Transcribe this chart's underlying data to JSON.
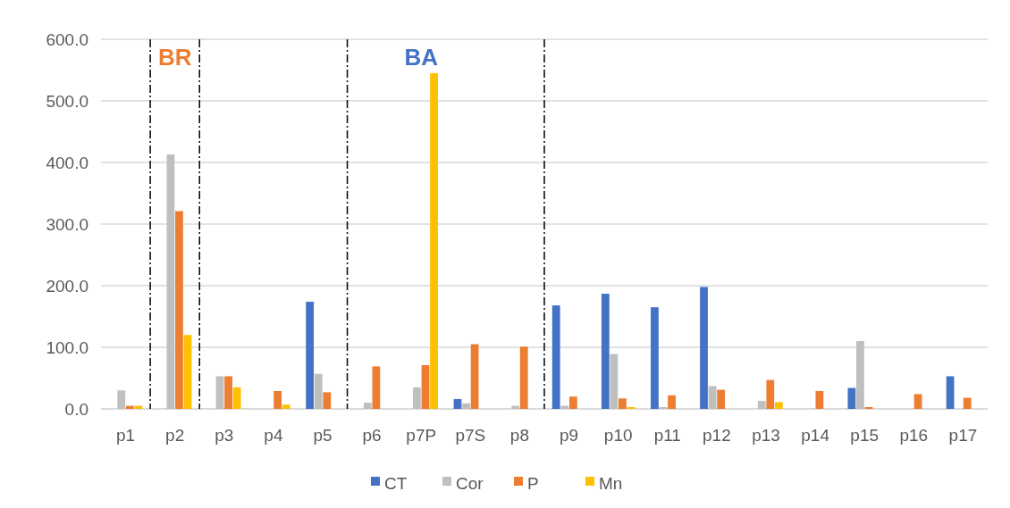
{
  "chart_data": {
    "type": "bar",
    "categories": [
      "p1",
      "p2",
      "p3",
      "p4",
      "p5",
      "p6",
      "p7P",
      "p7S",
      "p8",
      "p9",
      "p10",
      "p11",
      "p12",
      "p13",
      "p14",
      "p15",
      "p16",
      "p17"
    ],
    "series": [
      {
        "name": "CT",
        "color": "#4472c4",
        "values": [
          null,
          null,
          null,
          null,
          174,
          null,
          null,
          16,
          null,
          168,
          187,
          165,
          198,
          null,
          null,
          34,
          null,
          53
        ]
      },
      {
        "name": "Cor",
        "color": "#bfbfbf",
        "values": [
          30,
          413,
          53,
          null,
          57,
          10,
          35,
          9,
          5,
          5,
          89,
          3,
          37,
          13,
          null,
          110,
          null,
          null
        ]
      },
      {
        "name": "P",
        "color": "#ed7d31",
        "values": [
          5,
          321,
          53,
          29,
          27,
          69,
          71,
          105,
          101,
          20,
          17,
          22,
          31,
          47,
          29,
          3,
          24,
          18
        ]
      },
      {
        "name": "Mn",
        "color": "#ffc000",
        "values": [
          5,
          120,
          35,
          7,
          null,
          null,
          545,
          null,
          null,
          null,
          3,
          null,
          null,
          11,
          null,
          null,
          null,
          null
        ]
      }
    ],
    "ylim": [
      0,
      600
    ],
    "yticks": [
      {
        "value": 0,
        "label": "0.0"
      },
      {
        "value": 100,
        "label": "100.0"
      },
      {
        "value": 200,
        "label": "200.0"
      },
      {
        "value": 300,
        "label": "300.0"
      },
      {
        "value": 400,
        "label": "400.0"
      },
      {
        "value": 500,
        "label": "500.0"
      },
      {
        "value": 600,
        "label": "600.0"
      }
    ],
    "grid": "y",
    "legend": "bottom",
    "annotations": [
      "BR",
      "BA"
    ]
  }
}
